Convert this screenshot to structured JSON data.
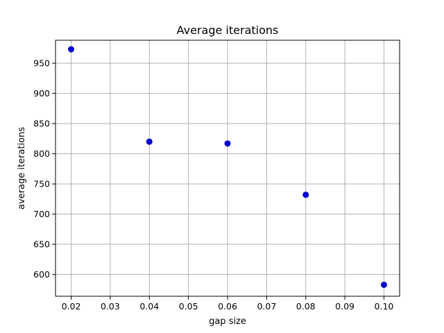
{
  "chart_data": {
    "type": "scatter",
    "title": "Average iterations",
    "xlabel": "gap size",
    "ylabel": "average iterations",
    "xlim": [
      0.016,
      0.104
    ],
    "ylim": [
      564,
      988
    ],
    "xticks": [
      0.02,
      0.03,
      0.04,
      0.05,
      0.06,
      0.07,
      0.08,
      0.09,
      0.1
    ],
    "xtick_labels": [
      "0.02",
      "0.03",
      "0.04",
      "0.05",
      "0.06",
      "0.07",
      "0.08",
      "0.09",
      "0.10"
    ],
    "yticks": [
      600,
      650,
      700,
      750,
      800,
      850,
      900,
      950
    ],
    "ytick_labels": [
      "600",
      "650",
      "700",
      "750",
      "800",
      "850",
      "900",
      "950"
    ],
    "grid": true,
    "marker_color": "#0000cc",
    "series": [
      {
        "x": [
          0.02,
          0.04,
          0.06,
          0.08,
          0.1
        ],
        "y": [
          973,
          820,
          817,
          732,
          583
        ]
      }
    ]
  }
}
